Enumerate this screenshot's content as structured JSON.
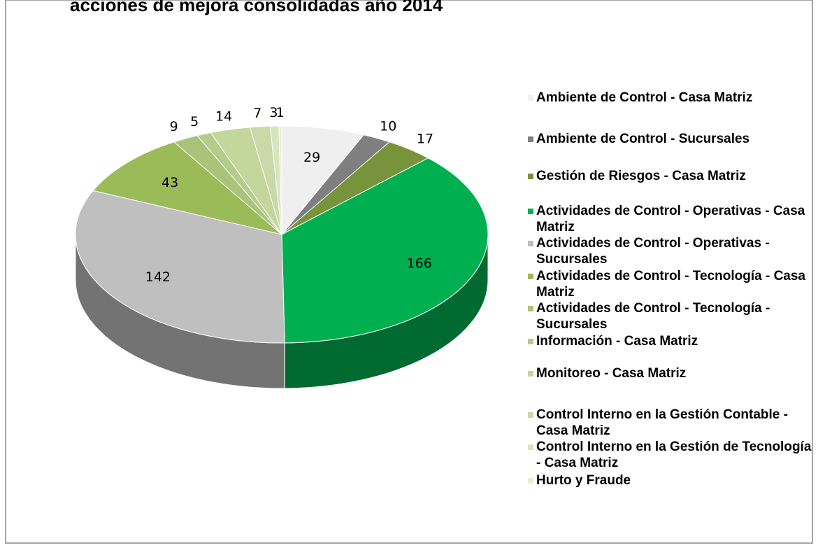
{
  "chart_data": {
    "type": "pie3d",
    "title": "acciones de mejora consolidadas año 2014",
    "categories": [
      "Ambiente de Control - Casa Matriz",
      "Ambiente de Control - Sucursales",
      "Gestión de Riesgos - Casa Matriz",
      "Actividades de Control - Operativas - Casa Matriz",
      "Actividades de Control - Operativas - Sucursales",
      "Actividades de Control - Tecnología - Casa Matriz",
      "Actividades de Control - Tecnología - Sucursales",
      "Información - Casa Matriz",
      "Monitoreo - Casa Matriz",
      "Control Interno en la Gestión Contable - Casa Matriz",
      "Control Interno en la Gestión de Tecnología - Casa Matriz",
      "Hurto y Fraude"
    ],
    "values": [
      29,
      10,
      17,
      166,
      142,
      43,
      9,
      5,
      14,
      7,
      3,
      1
    ],
    "colors": [
      "#efefef",
      "#7f7f7f",
      "#77933c",
      "#00b050",
      "#bfbfbf",
      "#9bbb59",
      "#a9c47a",
      "#b3cc8a",
      "#c3d69b",
      "#c9d9a8",
      "#d7e4bd",
      "#e6eed5"
    ],
    "legend": "right"
  }
}
